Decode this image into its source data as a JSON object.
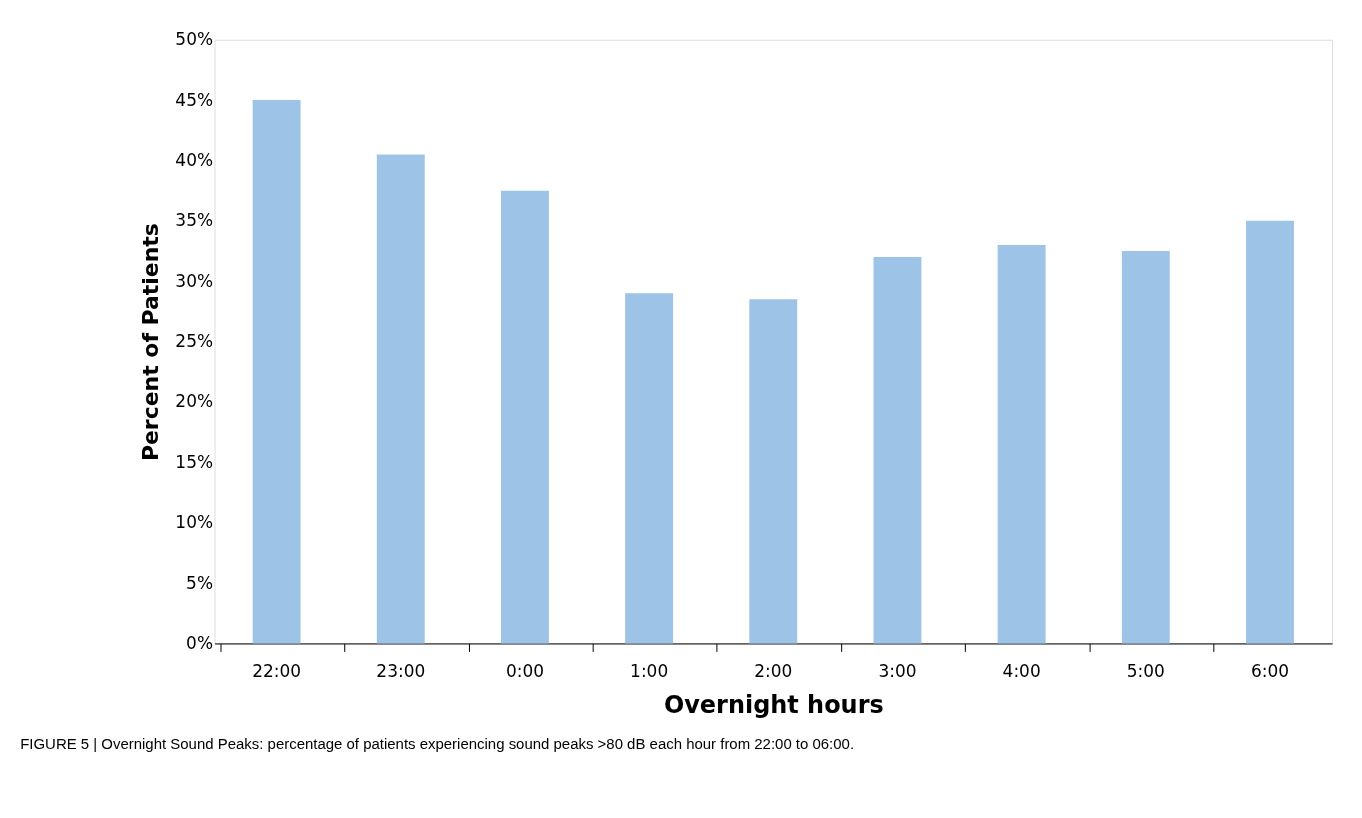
{
  "chart_data": {
    "type": "bar",
    "xlabel": "Overnight hours",
    "ylabel": "Percent of Patients",
    "categories": [
      "22:00",
      "23:00",
      "0:00",
      "1:00",
      "2:00",
      "3:00",
      "4:00",
      "5:00",
      "6:00"
    ],
    "values": [
      45,
      40.5,
      37.5,
      29,
      28.5,
      32,
      33,
      32.5,
      35
    ],
    "color": "#9dc3e6",
    "ylim": [
      0,
      50
    ],
    "yticks": [
      {
        "value": 0,
        "label": "0%"
      },
      {
        "value": 5,
        "label": "5%"
      },
      {
        "value": 10,
        "label": "10%"
      },
      {
        "value": 15,
        "label": "15%"
      },
      {
        "value": 20,
        "label": "20%"
      },
      {
        "value": 25,
        "label": "25%"
      },
      {
        "value": 30,
        "label": "30%"
      },
      {
        "value": 35,
        "label": "35%"
      },
      {
        "value": 40,
        "label": "40%"
      },
      {
        "value": 45,
        "label": "45%"
      },
      {
        "value": 50,
        "label": "50%"
      }
    ],
    "grid": false,
    "annotations": [
      "FIGURE 5 | Overnight Sound Peaks: percentage of patients experiencing sound peaks >80 dB each hour from 22:00 to 06:00."
    ]
  }
}
